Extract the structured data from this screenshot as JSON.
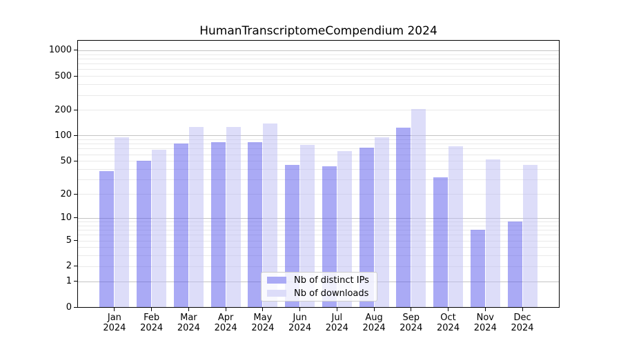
{
  "chart": {
    "title": "HumanTranscriptomeCompendium 2024",
    "legend": [
      {
        "label": "Nb of distinct IPs",
        "swatch_color": "#aaaaf5"
      },
      {
        "label": "Nb of downloads",
        "swatch_color": "#dcdcf9"
      }
    ]
  },
  "chart_data": {
    "type": "bar",
    "title": "HumanTranscriptomeCompendium 2024",
    "categories": [
      "Jan 2024",
      "Feb 2024",
      "Mar 2024",
      "Apr 2024",
      "May 2024",
      "Jun 2024",
      "Jul 2024",
      "Aug 2024",
      "Sep 2024",
      "Oct 2024",
      "Nov 2024",
      "Dec 2024"
    ],
    "series": [
      {
        "name": "Nb of distinct IPs",
        "values": [
          38,
          50,
          81,
          84,
          83,
          45,
          43,
          72,
          123,
          32,
          7,
          9
        ]
      },
      {
        "name": "Nb of downloads",
        "values": [
          95,
          68,
          127,
          126,
          140,
          77,
          66,
          95,
          205,
          75,
          52,
          45
        ]
      }
    ],
    "xlabel": "",
    "ylabel": "",
    "yscale": "log1p",
    "yticks": [
      0,
      1,
      2,
      5,
      10,
      20,
      50,
      100,
      200,
      500,
      1000
    ],
    "ylim": [
      0,
      1297
    ],
    "grid": true,
    "legend_position": "lower center",
    "style": {
      "bar_fill_distinct_ips": "rgba(85,85,235,0.5)",
      "bar_fill_downloads": "rgba(187,187,243,0.5)",
      "grid_major_color": "#c3c3c3",
      "grid_minor_color": "#e9e9e9",
      "spine_color": "#000000",
      "text_color": "#000000",
      "background": "#ffffff"
    }
  }
}
